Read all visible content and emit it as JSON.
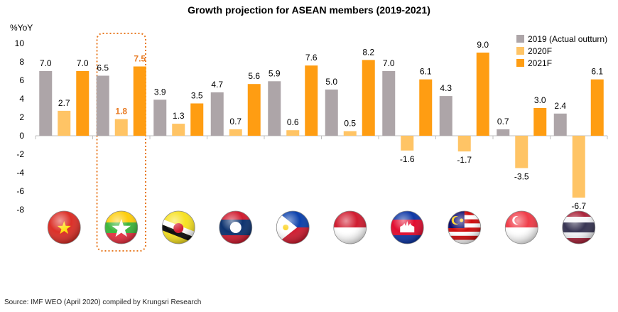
{
  "chart_data": {
    "type": "bar",
    "title": "Growth projection for ASEAN members (2019-2021)",
    "ylabel": "%YoY",
    "ylim": [
      -8,
      10
    ],
    "yticks": [
      10,
      8,
      6,
      4,
      2,
      0,
      -2,
      -4,
      -6,
      -8
    ],
    "grid": false,
    "legend_position": "top-right",
    "categories": [
      "Vietnam",
      "Myanmar",
      "Brunei",
      "Laos",
      "Philippines",
      "Indonesia",
      "Cambodia",
      "Malaysia",
      "Singapore",
      "Thailand"
    ],
    "series": [
      {
        "name": "2019 (Actual outturn)",
        "color": "#ada5a8",
        "values": [
          7.0,
          6.5,
          3.9,
          4.7,
          5.9,
          5.0,
          7.0,
          4.3,
          0.7,
          2.4
        ],
        "labels": [
          "7.0",
          "6.5",
          "3.9",
          "4.7",
          "5.9",
          "5.0",
          "7.0",
          "4.3",
          "0.7",
          "2.4"
        ]
      },
      {
        "name": "2020F",
        "color": "#ffc465",
        "values": [
          2.7,
          1.8,
          1.3,
          0.7,
          0.6,
          0.5,
          -1.6,
          -1.7,
          -3.5,
          -6.7
        ],
        "labels": [
          "2.7",
          "1.8",
          "1.3",
          "0.7",
          "0.6",
          "0.5",
          "-1.6",
          "-1.7",
          "-3.5",
          "-6.7"
        ]
      },
      {
        "name": "2021F",
        "color": "#ff9d12",
        "values": [
          7.0,
          7.5,
          3.5,
          5.6,
          7.6,
          8.2,
          6.1,
          9.0,
          3.0,
          6.1
        ],
        "labels": [
          "7.0",
          "7.5",
          "3.5",
          "5.6",
          "7.6",
          "8.2",
          "6.1",
          "9.0",
          "3.0",
          "6.1"
        ]
      }
    ],
    "highlight": {
      "category_index": 1,
      "label_color": "#e87a22",
      "box_color": "#e87a22"
    },
    "flag_icons": [
      "vietnam-flag-icon",
      "myanmar-flag-icon",
      "brunei-flag-icon",
      "laos-flag-icon",
      "philippines-flag-icon",
      "indonesia-flag-icon",
      "cambodia-flag-icon",
      "malaysia-flag-icon",
      "singapore-flag-icon",
      "thailand-flag-icon"
    ]
  },
  "source": "Source: IMF WEO (April 2020) compiled by Krungsri Research"
}
